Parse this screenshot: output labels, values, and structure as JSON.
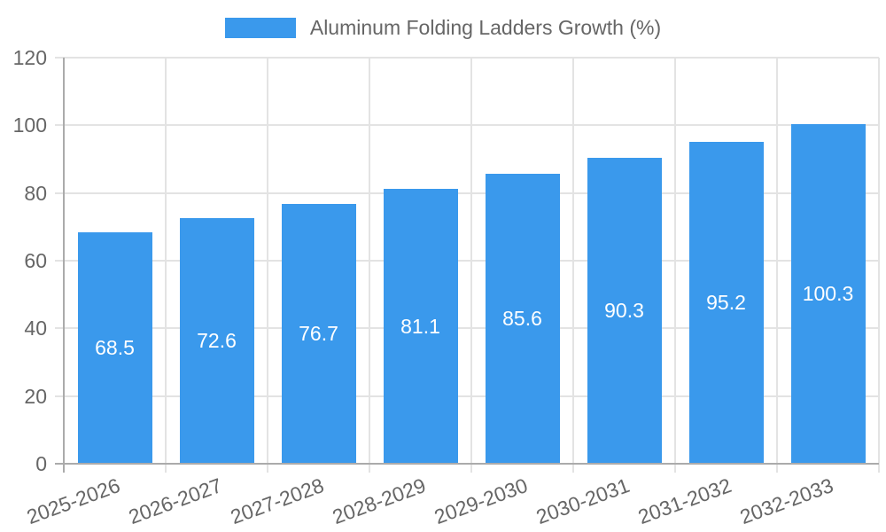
{
  "chart_data": {
    "type": "bar",
    "title": "",
    "xlabel": "",
    "ylabel": "",
    "legend": {
      "label": "Aluminum Folding Ladders Growth (%)",
      "position": "top"
    },
    "categories": [
      "2025-2026",
      "2026-2027",
      "2027-2028",
      "2028-2029",
      "2029-2030",
      "2030-2031",
      "2031-2032",
      "2032-2033"
    ],
    "values": [
      68.5,
      72.6,
      76.7,
      81.1,
      85.6,
      90.3,
      95.2,
      100.3
    ],
    "ylim": [
      0,
      120
    ],
    "yticks": [
      0,
      20,
      40,
      60,
      80,
      100,
      120
    ],
    "grid": true,
    "colors": {
      "bar": "#3A99EC",
      "text": "#666666",
      "grid": "#E3E3E3",
      "axis": "#ABABAB",
      "value_label": "#FFFFFF",
      "background": "#FFFFFF"
    }
  }
}
